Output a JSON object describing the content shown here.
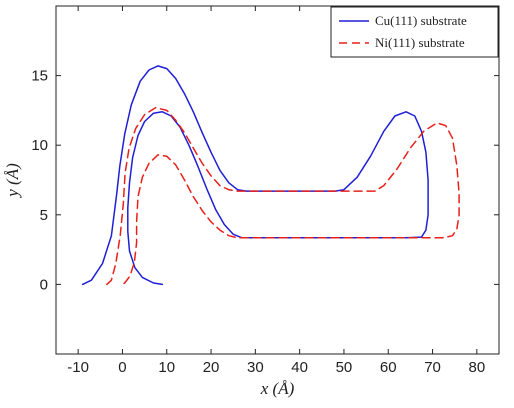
{
  "chart_data": {
    "type": "line",
    "xlabel": "x (Å)",
    "ylabel": "y (Å)",
    "xlim": [
      -15,
      85
    ],
    "ylim": [
      -5,
      20
    ],
    "xticks": [
      -10,
      0,
      10,
      20,
      30,
      40,
      50,
      60,
      70,
      80
    ],
    "yticks": [
      0,
      5,
      10,
      15
    ],
    "grid": false,
    "legend_position": "top-right",
    "series": [
      {
        "name": "Cu(111) substrate",
        "color": "#1f1fd6",
        "style": "solid",
        "points": [
          [
            -9,
            0
          ],
          [
            -7,
            0.3
          ],
          [
            -4.5,
            1.5
          ],
          [
            -2.5,
            3.5
          ],
          [
            -1.3,
            6.5
          ],
          [
            -0.6,
            8.5
          ],
          [
            0.5,
            10.8
          ],
          [
            2,
            12.9
          ],
          [
            4,
            14.6
          ],
          [
            6,
            15.4
          ],
          [
            8,
            15.7
          ],
          [
            10,
            15.5
          ],
          [
            12,
            14.8
          ],
          [
            14,
            13.7
          ],
          [
            16,
            12.4
          ],
          [
            18,
            10.9
          ],
          [
            20,
            9.5
          ],
          [
            22,
            8.2
          ],
          [
            24,
            7.3
          ],
          [
            26,
            6.8
          ],
          [
            28,
            6.7
          ],
          [
            48,
            6.7
          ],
          [
            50,
            6.8
          ],
          [
            53,
            7.7
          ],
          [
            56,
            9.2
          ],
          [
            59,
            11
          ],
          [
            61.5,
            12.1
          ],
          [
            64,
            12.4
          ],
          [
            66,
            12.1
          ],
          [
            67.5,
            11
          ],
          [
            68.5,
            9.5
          ],
          [
            69,
            7.5
          ],
          [
            69,
            5
          ],
          [
            68.5,
            3.9
          ],
          [
            67.5,
            3.4
          ],
          [
            64,
            3.35
          ],
          [
            27,
            3.35
          ],
          [
            25,
            3.6
          ],
          [
            23,
            4.3
          ],
          [
            21,
            5.4
          ],
          [
            19,
            6.9
          ],
          [
            17,
            8.5
          ],
          [
            15,
            10
          ],
          [
            13,
            11.3
          ],
          [
            11,
            12.1
          ],
          [
            9,
            12.4
          ],
          [
            7,
            12.3
          ],
          [
            5,
            11.7
          ],
          [
            3.5,
            10.7
          ],
          [
            2.3,
            9.1
          ],
          [
            1.6,
            7.3
          ],
          [
            1.2,
            5.5
          ],
          [
            1.2,
            3.8
          ],
          [
            1.6,
            2.4
          ],
          [
            2.8,
            1.2
          ],
          [
            4.5,
            0.5
          ],
          [
            7,
            0.1
          ],
          [
            9,
            0
          ]
        ]
      },
      {
        "name": "Ni(111) substrate",
        "color": "#e8201a",
        "style": "dashed",
        "points": [
          [
            -3.5,
            0
          ],
          [
            -2.5,
            0.3
          ],
          [
            -1.5,
            1.5
          ],
          [
            -0.5,
            3.5
          ],
          [
            0.2,
            5.8
          ],
          [
            0.6,
            8
          ],
          [
            1.5,
            9.8
          ],
          [
            3,
            11.2
          ],
          [
            5,
            12.2
          ],
          [
            7.5,
            12.7
          ],
          [
            10,
            12.5
          ],
          [
            12,
            11.8
          ],
          [
            14,
            10.9
          ],
          [
            16,
            9.8
          ],
          [
            18,
            8.7
          ],
          [
            20,
            7.8
          ],
          [
            22,
            7.1
          ],
          [
            24,
            6.8
          ],
          [
            26,
            6.7
          ],
          [
            57,
            6.7
          ],
          [
            59,
            7.1
          ],
          [
            62,
            8.3
          ],
          [
            65,
            9.8
          ],
          [
            68,
            11
          ],
          [
            71,
            11.6
          ],
          [
            73,
            11.4
          ],
          [
            74.5,
            10.5
          ],
          [
            75.5,
            8.5
          ],
          [
            76,
            6.5
          ],
          [
            76,
            5
          ],
          [
            75.5,
            4
          ],
          [
            74.5,
            3.5
          ],
          [
            72.5,
            3.35
          ],
          [
            26,
            3.35
          ],
          [
            24,
            3.5
          ],
          [
            22,
            3.9
          ],
          [
            20,
            4.5
          ],
          [
            18,
            5.3
          ],
          [
            16,
            6.3
          ],
          [
            14,
            7.5
          ],
          [
            12,
            8.6
          ],
          [
            10,
            9.2
          ],
          [
            8,
            9.3
          ],
          [
            6,
            8.7
          ],
          [
            4.5,
            7.7
          ],
          [
            3.5,
            6.3
          ],
          [
            3.2,
            4.5
          ],
          [
            3.2,
            3
          ],
          [
            2.7,
            1.6
          ],
          [
            1.7,
            0.6
          ],
          [
            0.5,
            0.1
          ],
          [
            0,
            0
          ]
        ]
      }
    ]
  }
}
